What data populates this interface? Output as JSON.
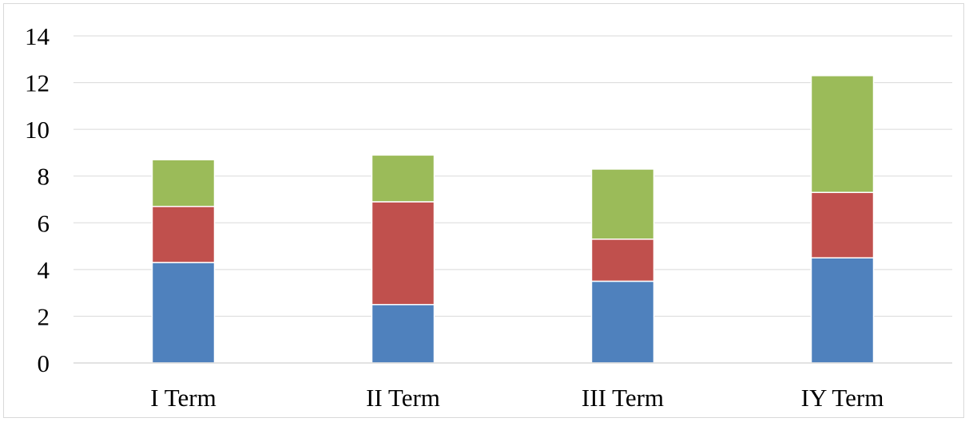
{
  "chart_data": {
    "type": "bar",
    "stacked": true,
    "title": "",
    "xlabel": "",
    "ylabel": "",
    "ylim": [
      0,
      14
    ],
    "yticks": [
      0,
      2,
      4,
      6,
      8,
      10,
      12,
      14
    ],
    "grid": true,
    "legend": "none",
    "categories": [
      "I Term",
      "II Term",
      "III Term",
      "IY Term"
    ],
    "series": [
      {
        "color": "#4f81bd",
        "values": [
          4.3,
          2.5,
          3.5,
          4.5
        ]
      },
      {
        "color": "#c0504d",
        "values": [
          2.4,
          4.4,
          1.8,
          2.8
        ]
      },
      {
        "color": "#9bbb59",
        "values": [
          2.0,
          2.0,
          3.0,
          5.0
        ]
      }
    ]
  }
}
